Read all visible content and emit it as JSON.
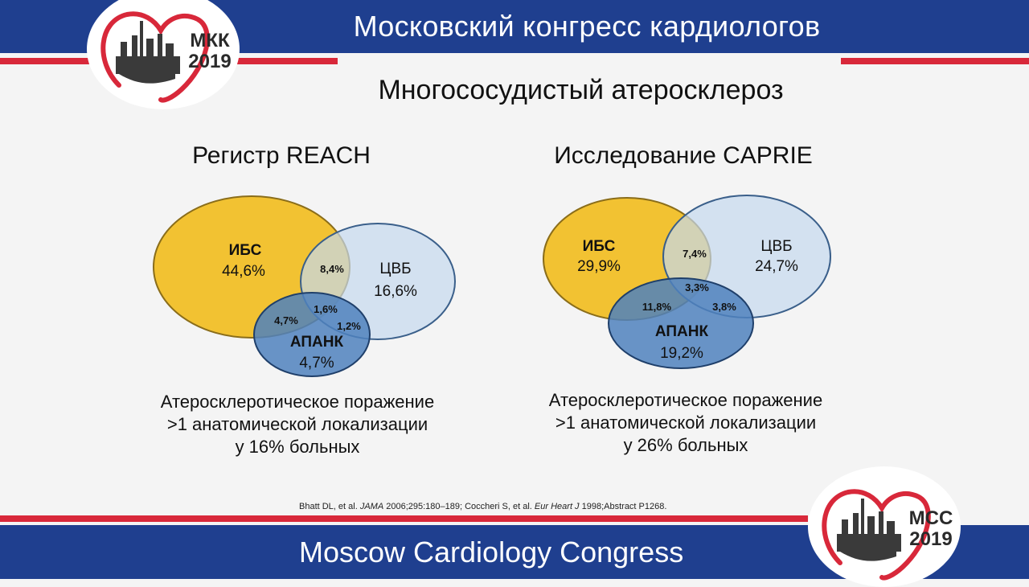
{
  "header": {
    "title": "Московский конгресс кардиологов"
  },
  "footer": {
    "title": "Moscow Cardiology Congress"
  },
  "logo_top": {
    "line1": "МКК",
    "line2": "2019"
  },
  "logo_bottom": {
    "line1": "MCC",
    "line2": "2019"
  },
  "slide_title": "Многососудистый атеросклероз",
  "left": {
    "title": "Регистр REACH",
    "ibs_name": "ИБС",
    "ibs_value": "44,6%",
    "cvb_name": "ЦВБ",
    "cvb_value": "16,6%",
    "apank_name": "АПАНК",
    "apank_value": "4,7%",
    "ibs_cvb": "8,4%",
    "ibs_apank": "4,7%",
    "all_three": "1,6%",
    "cvb_apank": "1,2%",
    "caption": [
      "Атеросклеротическое поражение",
      ">1 анатомической локализации",
      "у 16% больных"
    ]
  },
  "right": {
    "title": "Исследование CAPRIE",
    "ibs_name": "ИБС",
    "ibs_value": "29,9%",
    "cvb_name": "ЦВБ",
    "cvb_value": "24,7%",
    "apank_name": "АПАНК",
    "apank_value": "19,2%",
    "ibs_cvb": "7,4%",
    "ibs_apank": "11,8%",
    "all_three": "3,3%",
    "cvb_apank": "3,8%",
    "caption": [
      "Атеросклеротическое поражение",
      ">1 анатомической локализации",
      "у 26% больных"
    ]
  },
  "reference": {
    "part1": "Bhatt DL, et al. ",
    "journal1": "JAMA",
    "part2": " 2006;295:180–189; Coccheri S, et al. ",
    "journal2": "Eur Heart J",
    "part3": " 1998;Abstract P1268."
  },
  "colors": {
    "header_blue": "#1f3f8f",
    "accent_red": "#d8283a",
    "ibs_yellow": "#f2c232",
    "cvb_lightblue": "#c5d8ee",
    "apank_blue": "#4f81bd"
  }
}
